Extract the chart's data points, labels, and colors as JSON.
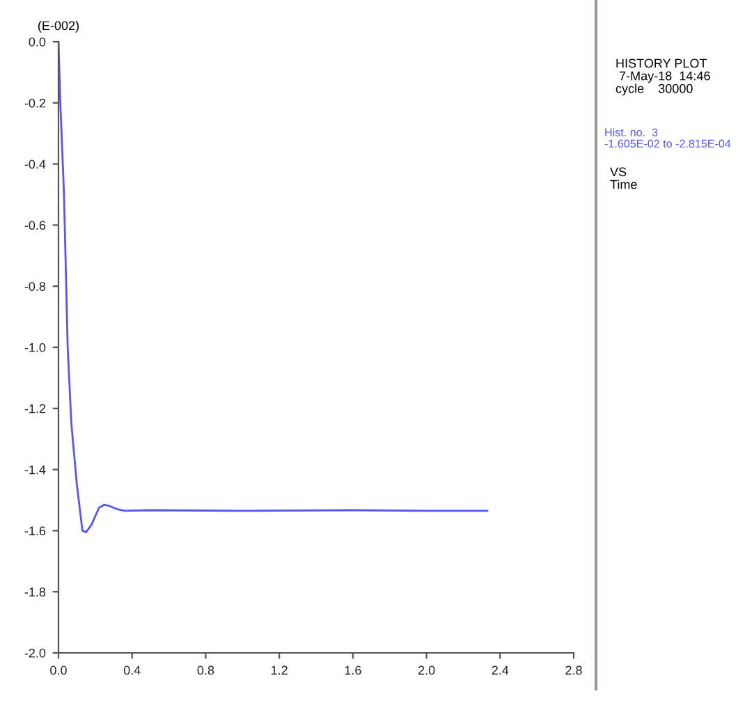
{
  "chart_data": {
    "type": "line",
    "ylabel": "(E-002)",
    "x": [
      0,
      0.01,
      0.03,
      0.05,
      0.07,
      0.1,
      0.13,
      0.15,
      0.18,
      0.22,
      0.25,
      0.28,
      0.32,
      0.36,
      0.5,
      1.0,
      1.6,
      2.0,
      2.33
    ],
    "series": [
      {
        "name": "Hist. no.  3\n-1.605E-02 to -2.815E-04",
        "color": "#5555ff",
        "values": [
          0,
          -0.2,
          -0.5,
          -1.0,
          -1.25,
          -1.45,
          -1.6,
          -1.605,
          -1.58,
          -1.525,
          -1.515,
          -1.52,
          -1.53,
          -1.535,
          -1.533,
          -1.535,
          -1.533,
          -1.535,
          -1.535
        ]
      }
    ],
    "xlim": [
      0,
      2.8
    ],
    "xticks": [
      {
        "value": 0,
        "label": "0.0"
      },
      0.4,
      0.8,
      1.2,
      1.6,
      {
        "value": 2,
        "label": "2.0"
      },
      2.4,
      2.8
    ],
    "ylim": [
      -2.0,
      0
    ],
    "yticks": [
      {
        "value": -2,
        "label": "-2.0"
      },
      -1.8,
      -1.6,
      -1.4,
      -1.2,
      {
        "value": -1,
        "label": "-1.0"
      },
      -0.8,
      -0.6,
      -0.4,
      -0.2,
      {
        "value": 0,
        "label": "0.0"
      }
    ],
    "annotations": [
      "HISTORY PLOT\n 7-May-18  14:46\ncycle    30000",
      "VS\nTime"
    ],
    "grid": false,
    "legend": "right",
    "marker": "none",
    "line_style": "solid"
  }
}
